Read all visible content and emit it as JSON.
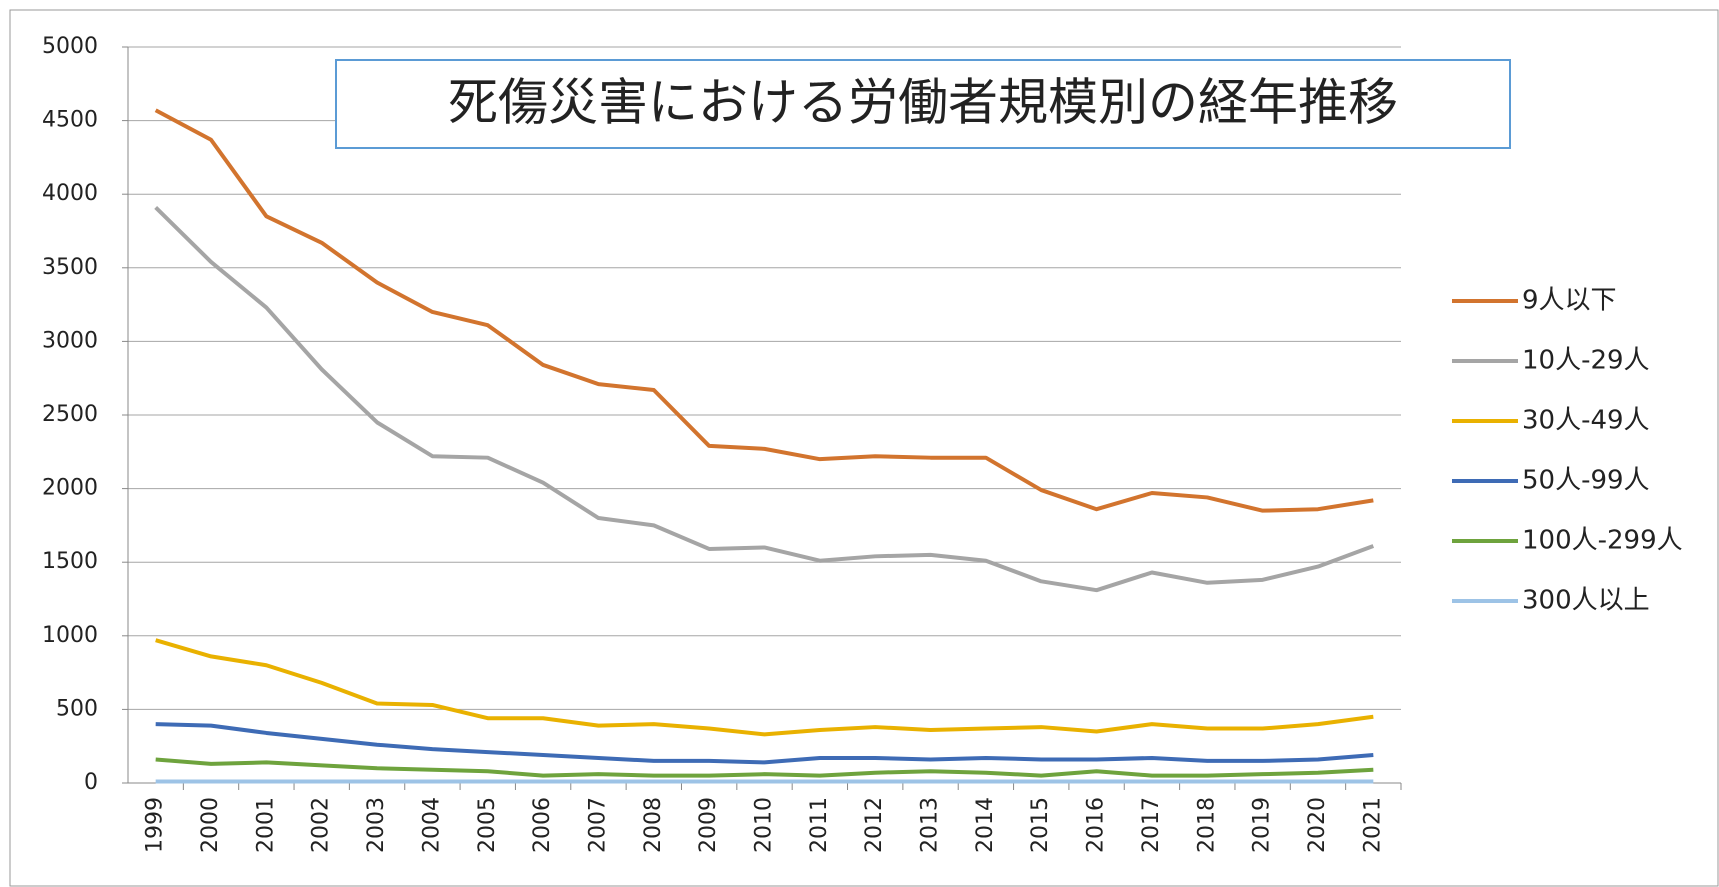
{
  "chart_data": {
    "type": "line",
    "title": "死傷災害における労働者規模別の経年推移",
    "categories": [
      "1999",
      "2000",
      "2001",
      "2002",
      "2003",
      "2004",
      "2005",
      "2006",
      "2007",
      "2008",
      "2009",
      "2010",
      "2011",
      "2012",
      "2013",
      "2014",
      "2015",
      "2016",
      "2017",
      "2018",
      "2019",
      "2020",
      "2021"
    ],
    "series": [
      {
        "name": "9人以下",
        "color": "#d2742e",
        "values": [
          4570,
          4370,
          3850,
          3670,
          3400,
          3200,
          3110,
          2840,
          2710,
          2670,
          2290,
          2270,
          2200,
          2220,
          2210,
          2210,
          1990,
          1860,
          1970,
          1940,
          1850,
          1860,
          1920
        ]
      },
      {
        "name": "10人-29人",
        "color": "#a5a5a5",
        "values": [
          3910,
          3540,
          3230,
          2810,
          2450,
          2220,
          2210,
          2040,
          1800,
          1750,
          1590,
          1600,
          1510,
          1540,
          1550,
          1510,
          1370,
          1310,
          1430,
          1360,
          1380,
          1470,
          1610
        ]
      },
      {
        "name": "30人-49人",
        "color": "#e9b100",
        "values": [
          970,
          860,
          800,
          680,
          540,
          530,
          440,
          440,
          390,
          400,
          370,
          330,
          360,
          380,
          360,
          370,
          380,
          350,
          400,
          370,
          370,
          400,
          450
        ]
      },
      {
        "name": "50人-99人",
        "color": "#3e6bb5",
        "values": [
          400,
          390,
          340,
          300,
          260,
          230,
          210,
          190,
          170,
          150,
          150,
          140,
          170,
          170,
          160,
          170,
          160,
          160,
          170,
          150,
          150,
          160,
          190
        ]
      },
      {
        "name": "100人-299人",
        "color": "#6ea33d",
        "values": [
          160,
          130,
          140,
          120,
          100,
          90,
          80,
          50,
          60,
          50,
          50,
          60,
          50,
          70,
          80,
          70,
          50,
          80,
          50,
          50,
          60,
          70,
          90
        ]
      },
      {
        "name": "300人以上",
        "color": "#9dc3e6",
        "values": [
          10,
          10,
          10,
          10,
          10,
          10,
          10,
          10,
          10,
          10,
          10,
          10,
          10,
          10,
          10,
          10,
          10,
          10,
          10,
          10,
          10,
          10,
          10
        ]
      }
    ],
    "ylim": [
      0,
      5000
    ],
    "yticks": [
      0,
      500,
      1000,
      1500,
      2000,
      2500,
      3000,
      3500,
      4000,
      4500,
      5000
    ],
    "grid": true,
    "legend": "right"
  }
}
